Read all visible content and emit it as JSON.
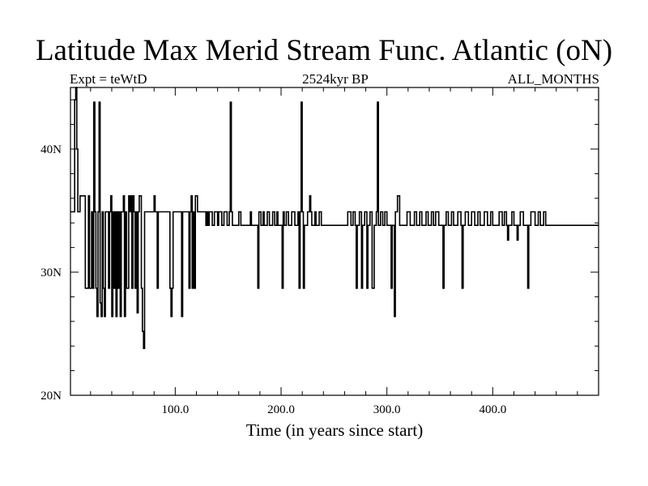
{
  "chart_data": {
    "type": "line",
    "title": "Latitude Max Merid Stream Func. Atlantic (oN)",
    "subtitle_left": "Expt = teWtD",
    "subtitle_center": "2524kyr BP",
    "subtitle_right": "ALL_MONTHS",
    "xlabel": "Time (in years since start)",
    "ylabel": "",
    "xlim": [
      1,
      500
    ],
    "ylim": [
      20,
      45
    ],
    "x_ticks": [
      {
        "value": 100,
        "label": "100.0"
      },
      {
        "value": 200,
        "label": "200.0"
      },
      {
        "value": 300,
        "label": "300.0"
      },
      {
        "value": 400,
        "label": "400.0"
      }
    ],
    "y_ticks": [
      {
        "value": 20,
        "label": "20N"
      },
      {
        "value": 30,
        "label": "30N"
      },
      {
        "value": 40,
        "label": "40N"
      }
    ],
    "grid": false,
    "step": true,
    "series": [
      {
        "name": "",
        "points": [
          [
            1,
            34.9
          ],
          [
            4,
            34.9
          ],
          [
            5,
            44
          ],
          [
            6,
            45
          ],
          [
            7,
            40
          ],
          [
            8,
            34.9
          ],
          [
            10,
            36.2
          ],
          [
            14,
            36.2
          ],
          [
            15,
            28.7
          ],
          [
            18,
            36.2
          ],
          [
            19,
            28.7
          ],
          [
            21,
            34.9
          ],
          [
            22,
            28.7
          ],
          [
            23,
            43.8
          ],
          [
            24,
            34.9
          ],
          [
            25,
            28.7
          ],
          [
            26,
            26.4
          ],
          [
            27,
            34.9
          ],
          [
            28,
            43.8
          ],
          [
            29,
            27.5
          ],
          [
            30,
            26.4
          ],
          [
            31,
            34.9
          ],
          [
            32,
            28.7
          ],
          [
            33,
            26.4
          ],
          [
            34,
            34.9
          ],
          [
            37,
            28.7
          ],
          [
            38,
            34.9
          ],
          [
            39,
            36.2
          ],
          [
            40,
            26.4
          ],
          [
            41,
            34.9
          ],
          [
            42,
            28.7
          ],
          [
            43,
            34.9
          ],
          [
            44,
            26.4
          ],
          [
            45,
            34.9
          ],
          [
            46,
            28.7
          ],
          [
            47,
            34.9
          ],
          [
            48,
            26.4
          ],
          [
            49,
            34.9
          ],
          [
            51,
            36.2
          ],
          [
            52,
            26.4
          ],
          [
            53,
            34.9
          ],
          [
            54,
            28.7
          ],
          [
            56,
            36.2
          ],
          [
            57,
            34.9
          ],
          [
            58,
            36.2
          ],
          [
            59,
            28.7
          ],
          [
            60,
            36.2
          ],
          [
            61,
            34.9
          ],
          [
            62,
            28.7
          ],
          [
            63,
            34.9
          ],
          [
            64,
            26.7
          ],
          [
            65,
            34.9
          ],
          [
            66,
            36.2
          ],
          [
            68,
            28.7
          ],
          [
            69,
            25.2
          ],
          [
            70,
            23.8
          ],
          [
            71,
            34.9
          ],
          [
            80,
            36.2
          ],
          [
            81,
            34.9
          ],
          [
            83,
            28.7
          ],
          [
            84,
            34.9
          ],
          [
            94,
            34.9
          ],
          [
            95,
            28.7
          ],
          [
            96,
            26.4
          ],
          [
            97,
            28.7
          ],
          [
            98,
            34.9
          ],
          [
            105,
            34.9
          ],
          [
            106,
            26.4
          ],
          [
            107,
            34.9
          ],
          [
            112,
            34.9
          ],
          [
            113,
            28.7
          ],
          [
            114,
            34.9
          ],
          [
            115,
            36.2
          ],
          [
            116,
            28.7
          ],
          [
            117,
            34.9
          ],
          [
            118,
            28.7
          ],
          [
            119,
            36.2
          ],
          [
            121,
            34.9
          ],
          [
            129,
            33.8
          ],
          [
            130,
            34.9
          ],
          [
            131,
            33.8
          ],
          [
            132,
            34.9
          ],
          [
            135,
            33.8
          ],
          [
            137,
            34.9
          ],
          [
            140,
            33.8
          ],
          [
            141,
            34.9
          ],
          [
            144,
            33.8
          ],
          [
            146,
            34.9
          ],
          [
            149,
            33.8
          ],
          [
            151,
            34.9
          ],
          [
            152,
            43.8
          ],
          [
            153,
            34.9
          ],
          [
            154,
            33.8
          ],
          [
            159,
            33.8
          ],
          [
            160,
            34.9
          ],
          [
            162,
            33.8
          ],
          [
            170,
            33.8
          ],
          [
            171,
            34.9
          ],
          [
            172,
            33.8
          ],
          [
            177,
            33.8
          ],
          [
            178,
            28.7
          ],
          [
            179,
            34.9
          ],
          [
            181,
            33.8
          ],
          [
            183,
            34.9
          ],
          [
            184,
            33.8
          ],
          [
            187,
            34.9
          ],
          [
            189,
            33.8
          ],
          [
            192,
            34.9
          ],
          [
            194,
            33.8
          ],
          [
            196,
            34.9
          ],
          [
            197,
            33.8
          ],
          [
            200,
            33.8
          ],
          [
            201,
            28.7
          ],
          [
            202,
            34.9
          ],
          [
            203,
            33.8
          ],
          [
            205,
            34.9
          ],
          [
            207,
            33.8
          ],
          [
            210,
            34.9
          ],
          [
            213,
            33.8
          ],
          [
            216,
            34.9
          ],
          [
            217,
            28.7
          ],
          [
            218,
            34.9
          ],
          [
            219,
            43.8
          ],
          [
            220,
            34.9
          ],
          [
            221,
            28.7
          ],
          [
            222,
            33.8
          ],
          [
            225,
            34.9
          ],
          [
            227,
            36.2
          ],
          [
            228,
            34.9
          ],
          [
            229,
            33.8
          ],
          [
            232,
            34.9
          ],
          [
            233,
            33.8
          ],
          [
            236,
            34.9
          ],
          [
            238,
            33.8
          ],
          [
            260,
            33.8
          ],
          [
            263,
            34.9
          ],
          [
            266,
            33.8
          ],
          [
            268,
            34.9
          ],
          [
            270,
            33.8
          ],
          [
            271,
            28.7
          ],
          [
            272,
            33.8
          ],
          [
            274,
            34.9
          ],
          [
            276,
            28.7
          ],
          [
            277,
            33.8
          ],
          [
            279,
            34.9
          ],
          [
            281,
            28.7
          ],
          [
            282,
            33.8
          ],
          [
            284,
            34.9
          ],
          [
            286,
            28.7
          ],
          [
            288,
            33.8
          ],
          [
            290,
            34.9
          ],
          [
            291,
            43.8
          ],
          [
            292,
            33.8
          ],
          [
            294,
            34.9
          ],
          [
            296,
            33.8
          ],
          [
            298,
            34.9
          ],
          [
            300,
            33.8
          ],
          [
            304,
            28.7
          ],
          [
            305,
            33.8
          ],
          [
            307,
            26.4
          ],
          [
            308,
            34.9
          ],
          [
            310,
            36.2
          ],
          [
            312,
            33.8
          ],
          [
            319,
            34.9
          ],
          [
            322,
            33.8
          ],
          [
            326,
            34.9
          ],
          [
            328,
            33.8
          ],
          [
            331,
            34.9
          ],
          [
            333,
            33.8
          ],
          [
            337,
            34.9
          ],
          [
            339,
            33.8
          ],
          [
            342,
            34.9
          ],
          [
            344,
            33.8
          ],
          [
            346,
            34.9
          ],
          [
            349,
            33.8
          ],
          [
            353,
            28.7
          ],
          [
            354,
            33.8
          ],
          [
            356,
            34.9
          ],
          [
            358,
            33.8
          ],
          [
            361,
            34.9
          ],
          [
            363,
            33.8
          ],
          [
            367,
            34.9
          ],
          [
            370,
            33.8
          ],
          [
            371,
            28.7
          ],
          [
            372,
            33.8
          ],
          [
            374,
            34.9
          ],
          [
            377,
            33.8
          ],
          [
            380,
            34.9
          ],
          [
            383,
            33.8
          ],
          [
            386,
            34.9
          ],
          [
            388,
            33.8
          ],
          [
            392,
            34.9
          ],
          [
            395,
            33.8
          ],
          [
            398,
            34.9
          ],
          [
            400,
            33.8
          ],
          [
            406,
            34.9
          ],
          [
            409,
            33.8
          ],
          [
            411,
            34.9
          ],
          [
            413,
            33.8
          ],
          [
            414,
            32.6
          ],
          [
            415,
            33.8
          ],
          [
            418,
            34.9
          ],
          [
            420,
            33.8
          ],
          [
            423,
            32.6
          ],
          [
            424,
            33.8
          ],
          [
            426,
            34.9
          ],
          [
            429,
            33.8
          ],
          [
            433,
            28.7
          ],
          [
            434,
            33.8
          ],
          [
            436,
            34.9
          ],
          [
            440,
            33.8
          ],
          [
            443,
            34.9
          ],
          [
            445,
            33.8
          ],
          [
            448,
            34.9
          ],
          [
            450,
            33.8
          ],
          [
            460,
            33.8
          ],
          [
            500,
            33.8
          ]
        ]
      }
    ]
  }
}
